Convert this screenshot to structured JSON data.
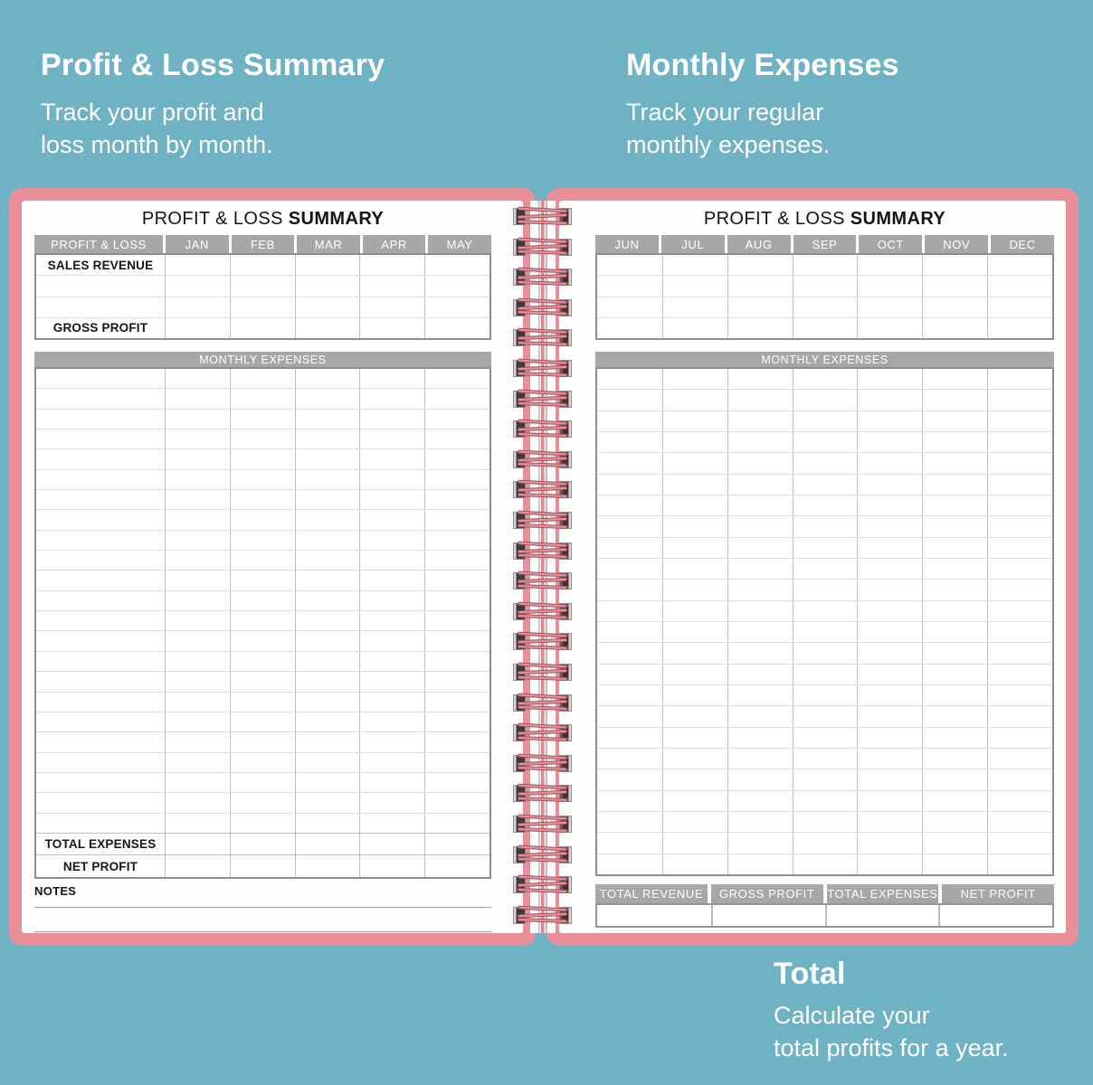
{
  "colors": {
    "background_teal": "#6fb2c4",
    "cover_pink": "#e88f99",
    "band_gray": "#a7a7a7",
    "caption_white": "#ffffff"
  },
  "annotations": {
    "profit_loss": {
      "title": "Profit & Loss Summary",
      "subtitle": "Track your profit and\nloss month by month."
    },
    "monthly_expenses": {
      "title": "Monthly Expenses",
      "subtitle": "Track your regular\nmonthly expenses."
    },
    "total": {
      "title": "Total",
      "subtitle": "Calculate your\ntotal profits for a year."
    }
  },
  "notebook": {
    "left_page": {
      "title_regular": "PROFIT & LOSS ",
      "title_bold": "SUMMARY",
      "header_columns": [
        "PROFIT & LOSS",
        "JAN",
        "FEB",
        "MAR",
        "APR",
        "MAY"
      ],
      "top_rows": [
        "SALES REVENUE",
        "",
        "",
        "GROSS PROFIT"
      ],
      "expenses_banner": "MONTHLY EXPENSES",
      "expense_row_count": 23,
      "footer_rows": [
        "TOTAL EXPENSES",
        "NET PROFIT"
      ],
      "notes_label": "NOTES",
      "notes_line_count": 2
    },
    "right_page": {
      "title_regular": "PROFIT & LOSS ",
      "title_bold": "SUMMARY",
      "header_columns": [
        "JUN",
        "JUL",
        "AUG",
        "SEP",
        "OCT",
        "NOV",
        "DEC"
      ],
      "top_empty_row_count": 4,
      "expenses_banner": "MONTHLY EXPENSES",
      "expense_row_count": 24,
      "summary_columns": [
        "TOTAL REVENUE",
        "GROSS PROFIT",
        "TOTAL EXPENSES",
        "NET PROFIT"
      ]
    },
    "spiral": {
      "coil_count": 24
    }
  }
}
